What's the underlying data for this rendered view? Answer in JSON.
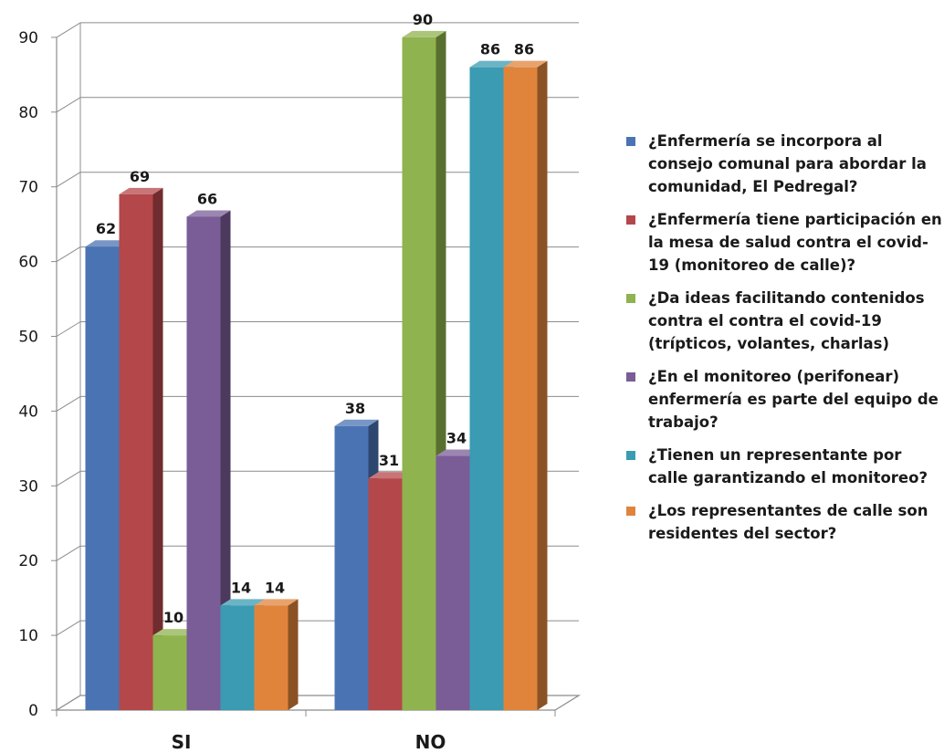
{
  "chart_data": {
    "type": "bar",
    "categories": [
      "SI",
      "NO"
    ],
    "ylim": [
      0,
      90
    ],
    "yticks": [
      0,
      10,
      20,
      30,
      40,
      50,
      60,
      70,
      80,
      90
    ],
    "grid": true,
    "legend_position": "right",
    "series": [
      {
        "name": "¿Enfermería se incorpora al consejo comunal para abordar la comunidad, El Pedregal?",
        "values": [
          62,
          38
        ],
        "color": "#4a73b3"
      },
      {
        "name": "¿Enfermería tiene participación en la mesa de salud contra el covid-19 (monitoreo de calle)?",
        "values": [
          69,
          31
        ],
        "color": "#b4474a"
      },
      {
        "name": "¿Da ideas facilitando contenidos contra el contra el covid-19 (trípticos, volantes, charlas)",
        "values": [
          10,
          90
        ],
        "color": "#8fb34e"
      },
      {
        "name": "¿En el monitoreo (perifonear) enfermería es parte del equipo de trabajo?",
        "values": [
          66,
          34
        ],
        "color": "#7a5c97"
      },
      {
        "name": "¿Tienen un representante por calle garantizando el monitoreo?",
        "values": [
          14,
          86
        ],
        "color": "#3a9bb3"
      },
      {
        "name": "¿Los representantes de calle son residentes del sector?",
        "values": [
          14,
          86
        ],
        "color": "#e0843c"
      }
    ]
  }
}
